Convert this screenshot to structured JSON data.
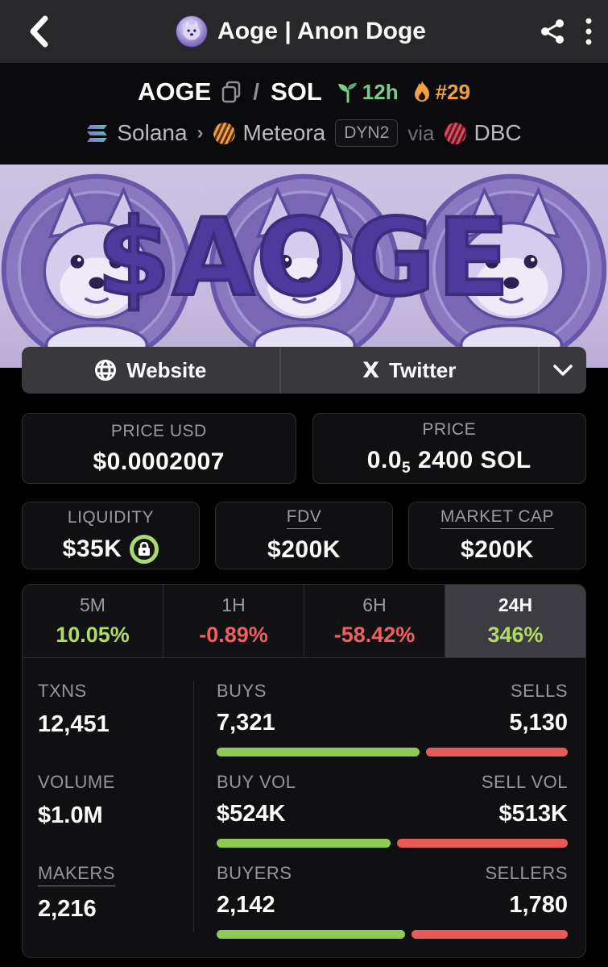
{
  "header": {
    "title": "Aoge | Anon Doge"
  },
  "pair": {
    "base": "AOGE",
    "slash": "/",
    "quote": "SOL",
    "age": "12h",
    "rank": "#29",
    "chain": "Solana",
    "crumb_sep": "›",
    "dex": "Meteora",
    "dex_badge": "DYN2",
    "via": "via",
    "launchpad": "DBC"
  },
  "banner": {
    "text": "$AOGE"
  },
  "social": {
    "website_label": "Website",
    "x_glyph": "X",
    "twitter_label": "Twitter"
  },
  "price_usd": {
    "label": "PRICE USD",
    "value": "$0.0002007"
  },
  "price_sol": {
    "label": "PRICE",
    "prefix": "0.0",
    "sub": "5",
    "suffix": "2400 SOL"
  },
  "liquidity": {
    "label": "LIQUIDITY",
    "value": "$35K"
  },
  "fdv": {
    "label": "FDV",
    "value": "$200K"
  },
  "market_cap": {
    "label": "MARKET CAP",
    "value": "$200K"
  },
  "timeframes": [
    {
      "label": "5M",
      "value": "10.05%",
      "direction": "up",
      "selected": false
    },
    {
      "label": "1H",
      "value": "-0.89%",
      "direction": "down",
      "selected": false
    },
    {
      "label": "6H",
      "value": "-58.42%",
      "direction": "down",
      "selected": false
    },
    {
      "label": "24H",
      "value": "346%",
      "direction": "up",
      "selected": true
    }
  ],
  "txns": {
    "label": "TXNS",
    "value": "12,451"
  },
  "volume": {
    "label": "VOLUME",
    "value": "$1.0M"
  },
  "makers": {
    "label": "MAKERS",
    "value": "2,216"
  },
  "buys_sells": {
    "left_label": "BUYS",
    "left_value": "7,321",
    "right_label": "SELLS",
    "right_value": "5,130",
    "green_pct": 58.8
  },
  "buy_sell_vol": {
    "left_label": "BUY VOL",
    "left_value": "$524K",
    "right_label": "SELL VOL",
    "right_value": "$513K",
    "green_pct": 50.5
  },
  "buyers_sellers": {
    "left_label": "BUYERS",
    "left_value": "2,142",
    "right_label": "SELLERS",
    "right_value": "1,780",
    "green_pct": 54.6
  },
  "colors": {
    "up_green": "#b0dc62",
    "down_red": "#f05f63",
    "bar_green": "#8fca52",
    "bar_red": "#e85a54",
    "age_green": "#7ecb90",
    "rank_orange": "#f0a13c",
    "lock_ring": "#a8d973",
    "banner_purple": "#4c3a9c"
  }
}
